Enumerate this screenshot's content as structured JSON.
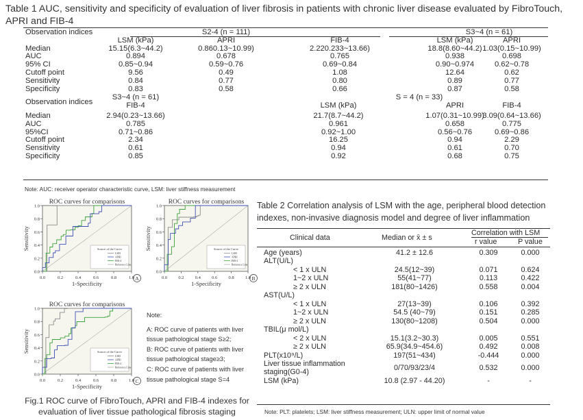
{
  "table1": {
    "title": "Table 1 AUC, sensitivity and specificity of evaluation of liver fibrosis in patients with chronic liver disease evaluated by FibroTouch, APRI and FIB-4",
    "header1": {
      "col0": "Observation indices",
      "group1": "S2-4 (n = 111)",
      "group2": "S3~4 (n = 61)",
      "cols": [
        "LSM (kPa)",
        "APRI",
        "FIB-4",
        "LSM (kPa)",
        "APRI"
      ]
    },
    "rows1": [
      {
        "label": "Median",
        "v": [
          "15.15(6.3~44.2)",
          "0.860.13~10.99)",
          "2.220.233~13.66)",
          "18.8(8.60~44.2)",
          "1.03(0.15~10.99)"
        ]
      },
      {
        "label": "AUC",
        "v": [
          "0.894",
          "0.678",
          "0.765",
          "0.938",
          "0.698"
        ]
      },
      {
        "label": "95% CI",
        "v": [
          "0.85~0.94",
          "0.59~0.76",
          "0.69~0.84",
          "0.90~0.974",
          "0.62~0.78"
        ]
      },
      {
        "label": "Cutoff point",
        "v": [
          "9.56",
          "0.49",
          "1.08",
          "12.64",
          "0.62"
        ]
      },
      {
        "label": "Sensitivity",
        "v": [
          "0.84",
          "0.77",
          "0.80",
          "0.89",
          "0.77"
        ]
      },
      {
        "label": "Specificity",
        "v": [
          "0.83",
          "0.58",
          "0.66",
          "0.87",
          "0.58"
        ]
      }
    ],
    "header2": {
      "col0": "Observation indices",
      "group1": "S3~4 (n = 61)",
      "group2": "S = 4 (n = 33)",
      "cols": [
        "FIB-4",
        "LSM (kPa)",
        "APRI",
        "FIB-4"
      ]
    },
    "rows2": [
      {
        "label": "Median",
        "v": [
          "2.94(0.23~13.66)",
          "21.7(8.7~44.2)",
          "1.07(0.31~10.99)",
          "3.09(0.64~13.66)"
        ]
      },
      {
        "label": "AUC",
        "v": [
          "0.785",
          "0.961",
          "0.658",
          "0.775"
        ]
      },
      {
        "label": "95%CI",
        "v": [
          "0.71~0.86",
          "0.92~1.00",
          "0.56~0.76",
          "0.69~0.86"
        ]
      },
      {
        "label": "Cutoff point",
        "v": [
          "2.34",
          "16.25",
          "0.94",
          "2.29"
        ]
      },
      {
        "label": "Sensitivity",
        "v": [
          "0.61",
          "0.94",
          "0.61",
          "0.70"
        ]
      },
      {
        "label": "Specificity",
        "v": [
          "0.85",
          "0.92",
          "0.68",
          "0.75"
        ]
      }
    ],
    "note": "Note: AUC: receiver operator characteristic curve, LSM: liver stiffness measurement"
  },
  "figure": {
    "plots": [
      {
        "title": "ROC curves for comparisons",
        "xlabel": "1-Specificity",
        "ylabel": "Sensitivity",
        "panel": "A",
        "legend_title": "Source of the Curve",
        "legend": [
          "LSM",
          "APRI",
          "FIB-4",
          "Reference Line"
        ]
      },
      {
        "title": "ROC curves for comparisons",
        "xlabel": "1-Specificity",
        "ylabel": "Sensitivity",
        "panel": "B",
        "legend_title": "Source of the Curve",
        "legend": [
          "LSM",
          "APRI",
          "FIB-4",
          "Reference Line"
        ]
      },
      {
        "title": "ROC curves for comparisons",
        "xlabel": "1-Specificity",
        "ylabel": "Sensitivity",
        "panel": "C",
        "legend_title": "Source of the Curve",
        "legend": [
          "LSM",
          "APRI",
          "FIB-4",
          "Reference Line"
        ]
      }
    ],
    "yticks": [
      "1.0",
      "0.8",
      "0.6",
      "0.4",
      "0.2",
      "0.0"
    ],
    "xticks": [
      "0.0",
      "0.2",
      "0.4",
      "0.6",
      "0.8",
      "1.0"
    ],
    "series_colors": {
      "LSM": "#8a8a8a",
      "APRI": "#3c4fb5",
      "FIB-4": "#3aa23a",
      "Reference": "#b0b0b0"
    },
    "note_lines": [
      "Note:",
      "A: ROC curve of patients with liver",
      "tissue pathological stage S≥2;",
      "B: ROC curve of patients with liver",
      "tissue pathological stage≥3;",
      "C: ROC curve of patients with liver",
      "tissue pathological stage S=4"
    ],
    "caption": "Fig.1 ROC curve of FibroTouch, APRI and FIB-4 indexes for evaluation of liver tissue pathological fibrosis staging"
  },
  "table2": {
    "title": "Table 2 Correlation analysis of LSM with the age, peripheral blood detection indexes, non-invasive diagnosis model and degree of liver inflammation",
    "header": {
      "clinical": "Clinical data",
      "median": "Median or x̄ ± s",
      "corr": "Correlation with LSM",
      "r": "r value",
      "p": "P value"
    },
    "rows": [
      {
        "label": "Age (years)",
        "indent": 0,
        "m": "41.2 ± 12.6",
        "r": "0.309",
        "p": "0.000"
      },
      {
        "label": "ALT(U/L)",
        "indent": 0,
        "m": "",
        "r": "",
        "p": ""
      },
      {
        "label": "< 1 x ULN",
        "indent": 1,
        "m": "24.5(12~39)",
        "r": "0.071",
        "p": "0.624"
      },
      {
        "label": "1~2 x ULN",
        "indent": 1,
        "m": "55(41~77)",
        "r": "0.113",
        "p": "0.422"
      },
      {
        "label": "≥ 2 x ULN",
        "indent": 1,
        "m": "181(80~1426)",
        "r": "0.558",
        "p": "0.004"
      },
      {
        "label": "AST(U/L)",
        "indent": 0,
        "m": "",
        "r": "",
        "p": ""
      },
      {
        "label": "< 1 x ULN",
        "indent": 1,
        "m": "27(13~39)",
        "r": "0.106",
        "p": "0.392"
      },
      {
        "label": "1~2 x ULN",
        "indent": 1,
        "m": "54.5 (40~79)",
        "r": "0.151",
        "p": "0.285"
      },
      {
        "label": "≥ 2 x ULN",
        "indent": 1,
        "m": "130(80~1208)",
        "r": "0.504",
        "p": "0.000"
      },
      {
        "label": "TBIL(μ mol/L)",
        "indent": 0,
        "m": "",
        "r": "",
        "p": ""
      },
      {
        "label": "< 2 x ULN",
        "indent": 1,
        "m": "15.1(3.2~30.3)",
        "r": "0.005",
        "p": "0.551"
      },
      {
        "label": "≥ 2 x ULN",
        "indent": 1,
        "m": "65.9(34.9~454.6)",
        "r": "0.492",
        "p": "0.008"
      },
      {
        "label": "PLT(x10⁹/L)",
        "indent": 0,
        "m": "197(51~434)",
        "r": "-0.444",
        "p": "0.000"
      },
      {
        "label": "Liver tissue inflammation",
        "label2": "staging(G0-4)",
        "indent": 0,
        "m": "0/70/93/23/4",
        "r": "0.532",
        "p": "0.000"
      },
      {
        "label": "LSM (kPa)",
        "indent": 0,
        "m": "10.8 (2.97 - 44.20)",
        "r": "-",
        "p": "-"
      }
    ],
    "note": "Note: PLT: platelets; LSM: liver stiffness measurement; ULN: upper limit of normal value"
  }
}
